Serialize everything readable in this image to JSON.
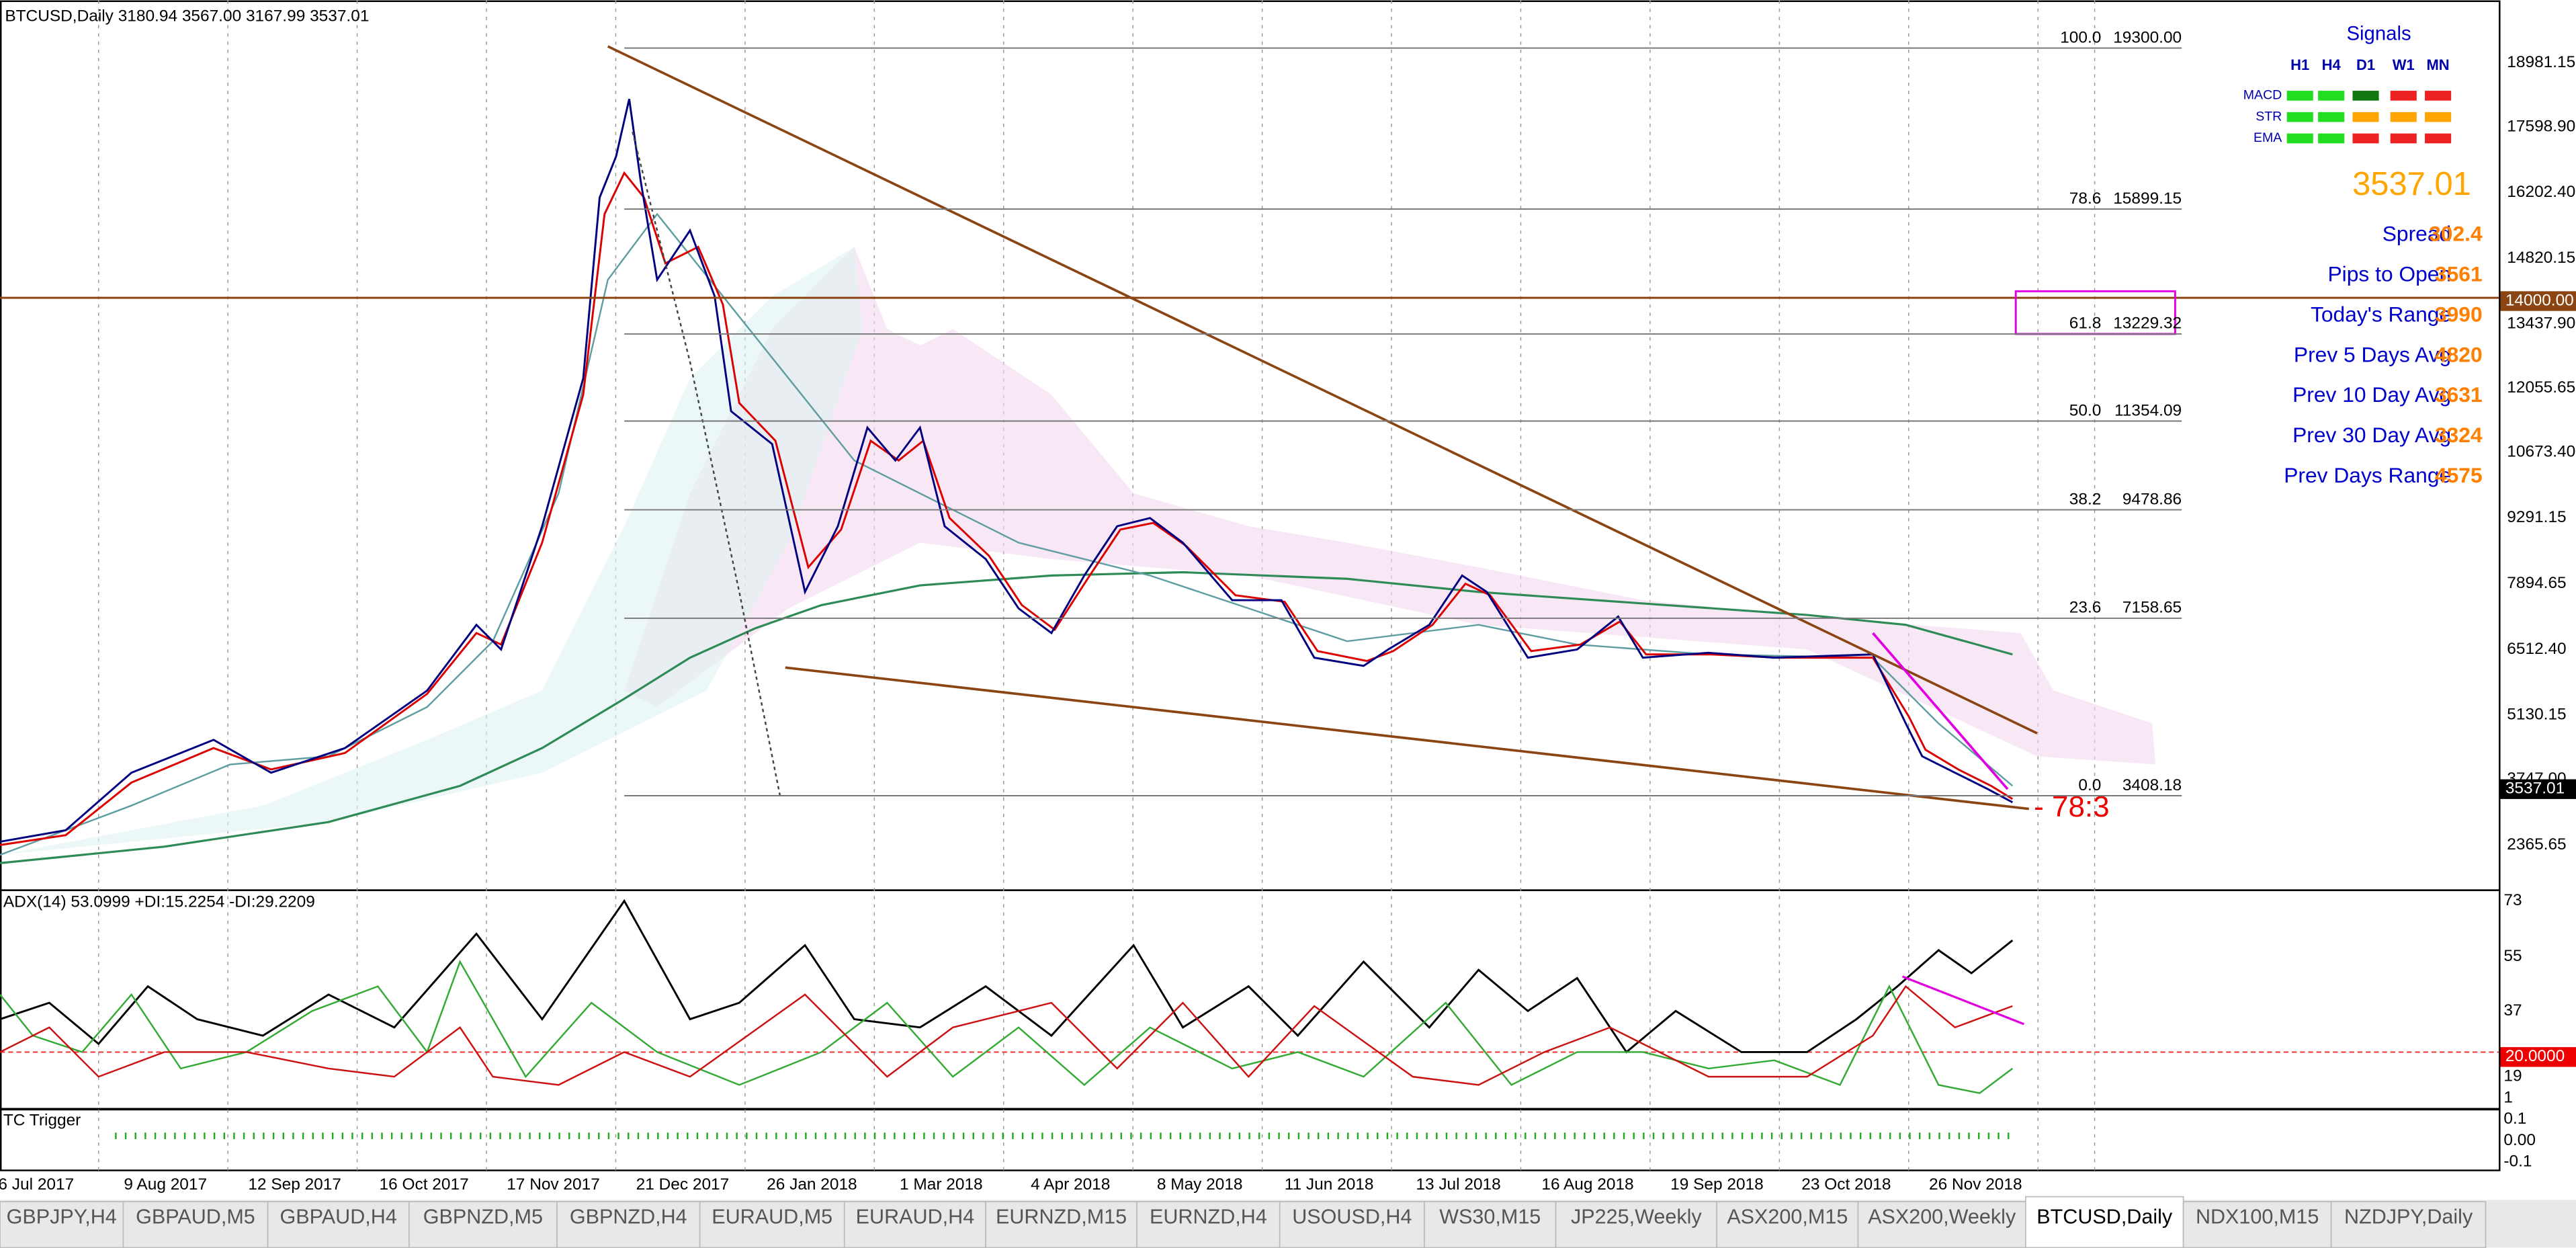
{
  "header": {
    "title": "BTCUSD,Daily  3180.94 3567.00 3167.99 3537.01"
  },
  "price_axis": {
    "labels": [
      "18981.15",
      "17598.90",
      "16202.40",
      "14820.15",
      "13437.90",
      "12055.65",
      "10673.40",
      "9291.15",
      "7894.65",
      "6512.40",
      "5130.15",
      "3747.00",
      "2365.65"
    ],
    "current_price": "3537.01",
    "level_label": "14000.00"
  },
  "fibonacci": [
    {
      "level": "100.0",
      "price": "19300.00"
    },
    {
      "level": "78.6",
      "price": "15899.15"
    },
    {
      "level": "61.8",
      "price": "13229.32"
    },
    {
      "level": "50.0",
      "price": "11354.09"
    },
    {
      "level": "38.2",
      "price": "9478.86"
    },
    {
      "level": "23.6",
      "price": "7158.65"
    },
    {
      "level": "0.0",
      "price": "3408.18"
    }
  ],
  "signals": {
    "title": "Signals",
    "columns": [
      "H1",
      "H4",
      "D1",
      "W1",
      "MN"
    ],
    "rows": [
      {
        "name": "MACD",
        "colors": [
          "#22dd22",
          "#22dd22",
          "#117711",
          "#ee2222",
          "#ee2222"
        ]
      },
      {
        "name": "STR",
        "colors": [
          "#22dd22",
          "#22dd22",
          "#ffa500",
          "#ffa500",
          "#ffa500"
        ]
      },
      {
        "name": "EMA",
        "colors": [
          "#22dd22",
          "#22dd22",
          "#ee2222",
          "#ee2222",
          "#ee2222"
        ]
      }
    ]
  },
  "stats": {
    "price": "3537.01",
    "rows": [
      {
        "label": "Spread",
        "value": "302.4"
      },
      {
        "label": "Pips to Open",
        "value": "3561"
      },
      {
        "label": "Today's Range",
        "value": "3990"
      },
      {
        "label": "Prev 5 Days Avg",
        "value": "4820"
      },
      {
        "label": "Prev 10 Day Avg",
        "value": "3631"
      },
      {
        "label": "Prev 30 Day Avg",
        "value": "3324"
      },
      {
        "label": "Prev Days Range",
        "value": "4575"
      }
    ]
  },
  "annotation": "- 78:3",
  "indicator": {
    "title": "ADX(14) 53.0999 +DI:15.2254 -DI:29.2209",
    "labels": [
      "73",
      "55",
      "37",
      "19",
      "1"
    ],
    "level_label": "20.0000"
  },
  "trigger": {
    "title": "TC Trigger",
    "labels": [
      "0.1",
      "0.00",
      "-0.1"
    ]
  },
  "dates": [
    "6 Jul 2017",
    "9 Aug 2017",
    "12 Sep 2017",
    "16 Oct 2017",
    "17 Nov 2017",
    "21 Dec 2017",
    "26 Jan 2018",
    "1 Mar 2018",
    "4 Apr 2018",
    "8 May 2018",
    "11 Jun 2018",
    "13 Jul 2018",
    "16 Aug 2018",
    "19 Sep 2018",
    "23 Oct 2018",
    "26 Nov 2018"
  ],
  "tabs": [
    "GBPJPY,H4",
    "GBPAUD,M5",
    "GBPAUD,H4",
    "GBPNZD,M5",
    "GBPNZD,H4",
    "EURAUD,M5",
    "EURAUD,H4",
    "EURNZD,M15",
    "EURNZD,H4",
    "USOUSD,H4",
    "WS30,M15",
    "JP225,Weekly",
    "ASX200,M15",
    "ASX200,Weekly",
    "BTCUSD,Daily",
    "NDX100,M15",
    "NZDJPY,Daily"
  ],
  "active_tab": "BTCUSD,Daily"
}
